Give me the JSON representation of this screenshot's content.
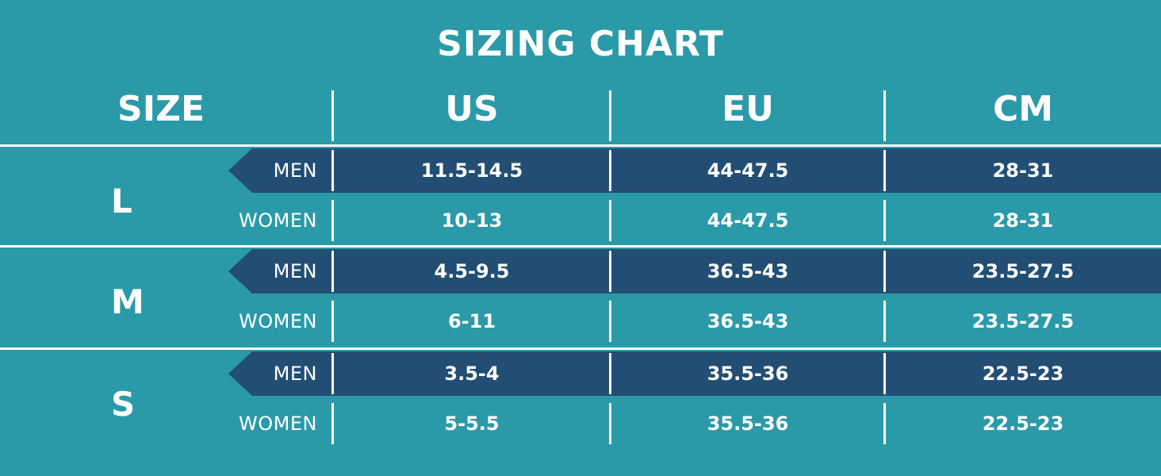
{
  "title": "SIZING CHART",
  "headers": {
    "size": "SIZE",
    "columns": [
      "US",
      "EU",
      "CM"
    ]
  },
  "chart_data": {
    "type": "table",
    "columns": [
      "SIZE",
      "",
      "US",
      "EU",
      "CM"
    ],
    "groups": [
      {
        "size": "L",
        "rows": [
          {
            "gender": "MEN",
            "us": "11.5-14.5",
            "eu": "44-47.5",
            "cm": "28-31"
          },
          {
            "gender": "WOMEN",
            "us": "10-13",
            "eu": "44-47.5",
            "cm": "28-31"
          }
        ]
      },
      {
        "size": "M",
        "rows": [
          {
            "gender": "MEN",
            "us": "4.5-9.5",
            "eu": "36.5-43",
            "cm": "23.5-27.5"
          },
          {
            "gender": "WOMEN",
            "us": "6-11",
            "eu": "36.5-43",
            "cm": "23.5-27.5"
          }
        ]
      },
      {
        "size": "S",
        "rows": [
          {
            "gender": "MEN",
            "us": "3.5-4",
            "eu": "35.5-36",
            "cm": "22.5-23"
          },
          {
            "gender": "WOMEN",
            "us": "5-5.5",
            "eu": "35.5-36",
            "cm": "22.5-23"
          }
        ]
      }
    ]
  },
  "colors": {
    "background": "#2b9aa8",
    "row_highlight": "#234e74",
    "text": "#ffffff"
  }
}
